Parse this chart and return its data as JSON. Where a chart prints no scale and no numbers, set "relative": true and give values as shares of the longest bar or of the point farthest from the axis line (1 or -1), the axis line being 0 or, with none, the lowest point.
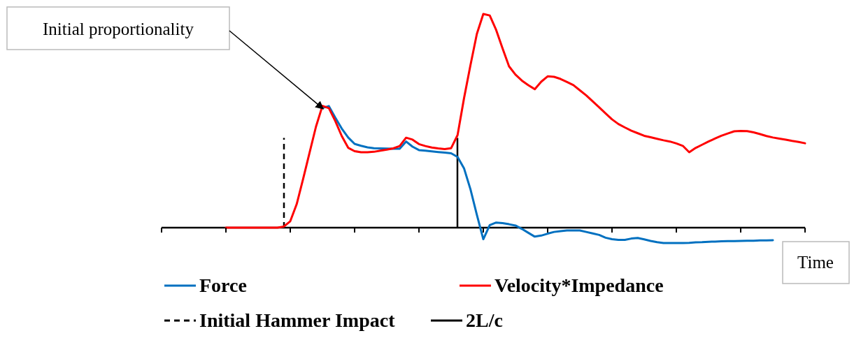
{
  "chart_data": {
    "type": "line",
    "relative": true,
    "xlabel": "Time",
    "legend": "bottom",
    "line_style": "solid",
    "categories": [
      null,
      null,
      null,
      null,
      null,
      null,
      null,
      null,
      null,
      null,
      null,
      null,
      null,
      null,
      null,
      null,
      null,
      null,
      null,
      null,
      null,
      null,
      null,
      null,
      null,
      null,
      null,
      null,
      null,
      null,
      null,
      null,
      null,
      null,
      null,
      null,
      null,
      null,
      null,
      null,
      null,
      null,
      null,
      null,
      null,
      null,
      null,
      null,
      null,
      null,
      null,
      null,
      null,
      null,
      null,
      null,
      null,
      null,
      null,
      null,
      null,
      null,
      null,
      null,
      null,
      null,
      null,
      null,
      null,
      null,
      null,
      null,
      null,
      null,
      null,
      null,
      null,
      null,
      null,
      null,
      null,
      null,
      null,
      null,
      null,
      null,
      null,
      null,
      null,
      null,
      null,
      null,
      null,
      null,
      null,
      null,
      null,
      null,
      null,
      null,
      null
    ],
    "annotations": [
      "Initial proportionality"
    ],
    "ref_lines": [
      {
        "axis": "x",
        "label": "Initial Hammer Impact",
        "color": "#000000",
        "line_style": "dashed"
      },
      {
        "axis": "x",
        "label": "2L/c",
        "color": "#000000",
        "line_style": "solid"
      }
    ],
    "series": [
      {
        "name": "Force",
        "color": "#0070c0",
        "values": [
          null,
          null,
          null,
          null,
          null,
          null,
          null,
          null,
          null,
          null,
          null,
          null,
          null,
          null,
          null,
          null,
          null,
          null,
          null,
          null,
          null,
          null,
          null,
          null,
          null,
          0.56,
          0.569,
          0.515,
          0.464,
          0.422,
          0.392,
          0.383,
          0.376,
          0.372,
          0.371,
          0.37,
          0.369,
          0.369,
          0.403,
          0.379,
          0.363,
          0.36,
          0.357,
          0.354,
          0.351,
          0.348,
          0.331,
          0.278,
          0.18,
          0.06,
          -0.054,
          0.012,
          0.024,
          0.021,
          0.016,
          0.01,
          -0.006,
          -0.024,
          -0.042,
          -0.037,
          -0.028,
          -0.02,
          -0.016,
          -0.013,
          -0.013,
          -0.013,
          -0.02,
          -0.027,
          -0.034,
          -0.047,
          -0.054,
          -0.057,
          -0.057,
          -0.051,
          -0.048,
          -0.055,
          -0.062,
          -0.068,
          -0.072,
          -0.072,
          -0.072,
          -0.072,
          -0.071,
          -0.069,
          -0.068,
          -0.066,
          -0.065,
          -0.064,
          -0.063,
          -0.063,
          -0.062,
          -0.061,
          -0.061,
          -0.06,
          -0.06,
          -0.059,
          null,
          null,
          null,
          null,
          null
        ]
      },
      {
        "name": "Velocity*Impedance",
        "color": "#ff0000",
        "values": [
          null,
          null,
          null,
          null,
          null,
          null,
          null,
          null,
          null,
          null,
          0,
          0,
          0,
          0,
          0,
          0,
          0,
          0,
          0,
          0.005,
          0.03,
          0.11,
          0.228,
          0.351,
          0.473,
          0.57,
          0.559,
          0.499,
          0.429,
          0.374,
          0.358,
          0.353,
          0.353,
          0.355,
          0.36,
          0.365,
          0.371,
          0.382,
          0.421,
          0.412,
          0.391,
          0.382,
          0.375,
          0.371,
          0.368,
          0.372,
          0.433,
          0.605,
          0.76,
          0.907,
          1,
          0.993,
          0.925,
          0.838,
          0.755,
          0.716,
          0.688,
          0.667,
          0.648,
          0.683,
          0.708,
          0.706,
          0.696,
          0.682,
          0.667,
          0.643,
          0.619,
          0.591,
          0.563,
          0.535,
          0.507,
          0.485,
          0.469,
          0.454,
          0.442,
          0.43,
          0.423,
          0.416,
          0.409,
          0.403,
          0.394,
          0.383,
          0.353,
          0.373,
          0.388,
          0.403,
          0.417,
          0.43,
          0.441,
          0.451,
          0.453,
          0.452,
          0.446,
          0.438,
          0.429,
          0.422,
          0.417,
          0.412,
          0.406,
          0.401,
          0.395
        ]
      }
    ]
  }
}
